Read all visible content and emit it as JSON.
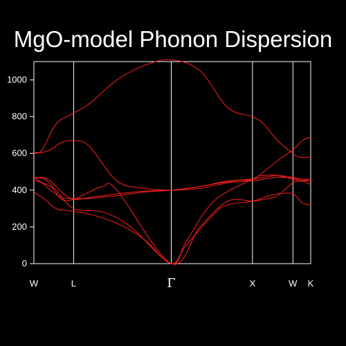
{
  "chart_data": {
    "type": "line",
    "title": "MgO-model Phonon Dispersion",
    "xlabel": "",
    "ylabel": "",
    "ylim": [
      0,
      1100
    ],
    "yticks": [
      "0",
      "200",
      "400",
      "600",
      "800",
      "1000"
    ],
    "ytick_values": [
      0,
      200,
      400,
      600,
      800,
      1000
    ],
    "kpoints": [
      {
        "label": "W",
        "x": 0
      },
      {
        "label": "L",
        "x": 0.1435
      },
      {
        "label": "Γ",
        "x": 0.4963
      },
      {
        "label": "X",
        "x": 0.7896
      },
      {
        "label": "W",
        "x": 0.9358
      },
      {
        "label": "K",
        "x": 1.0
      }
    ],
    "grid": false,
    "line_color": "#ff2020",
    "series": [
      {
        "x": [
          0,
          0.03,
          0.08,
          0.1435,
          0.2,
          0.3,
          0.4,
          0.4963,
          0.6,
          0.7,
          0.7896,
          0.83,
          0.88,
          0.9358,
          0.96,
          1.0
        ],
        "values": [
          600,
          620,
          760,
          820,
          870,
          1000,
          1080,
          1110,
          1050,
          850,
          800,
          760,
          670,
          600,
          580,
          580
        ]
      },
      {
        "x": [
          0,
          0.03,
          0.06,
          0.1,
          0.1435,
          0.2,
          0.3,
          0.4,
          0.4963,
          0.6,
          0.7,
          0.7896,
          0.83,
          0.88,
          0.9358,
          0.97,
          1.0
        ],
        "values": [
          605,
          605,
          620,
          660,
          670,
          640,
          450,
          410,
          400,
          410,
          440,
          460,
          500,
          560,
          620,
          670,
          690
        ]
      },
      {
        "x": [
          0,
          0.03,
          0.06,
          0.1,
          0.1435,
          0.2,
          0.3,
          0.4,
          0.4963,
          0.6,
          0.7,
          0.7896,
          0.83,
          0.88,
          0.9358,
          0.97,
          1.0
        ],
        "values": [
          465,
          470,
          450,
          390,
          350,
          360,
          380,
          395,
          400,
          420,
          450,
          460,
          470,
          480,
          470,
          460,
          460
        ]
      },
      {
        "x": [
          0,
          0.03,
          0.06,
          0.1,
          0.1435,
          0.2,
          0.3,
          0.4,
          0.4963,
          0.6,
          0.7,
          0.7896,
          0.83,
          0.88,
          0.9358,
          0.97,
          1.0
        ],
        "values": [
          470,
          440,
          400,
          360,
          355,
          355,
          370,
          390,
          400,
          420,
          445,
          450,
          460,
          470,
          465,
          450,
          430
        ]
      },
      {
        "x": [
          0,
          0.04,
          0.08,
          0.1435,
          0.25,
          0.35,
          0.4963,
          0.55,
          0.65,
          0.7896,
          0.83,
          0.88,
          0.9358,
          0.96,
          1.0
        ],
        "values": [
          470,
          460,
          400,
          300,
          280,
          200,
          0,
          120,
          340,
          460,
          480,
          480,
          460,
          450,
          460
        ]
      },
      {
        "x": [
          0,
          0.04,
          0.08,
          0.1435,
          0.2,
          0.3,
          0.4,
          0.4963,
          0.55,
          0.65,
          0.7,
          0.7896,
          0.83,
          0.88,
          0.9358,
          0.97,
          1.0
        ],
        "values": [
          390,
          350,
          300,
          285,
          270,
          220,
          130,
          0,
          100,
          270,
          320,
          340,
          360,
          380,
          380,
          330,
          320
        ]
      },
      {
        "x": [
          0,
          0.06,
          0.1,
          0.1435,
          0.2,
          0.25,
          0.3,
          0.4963,
          0.6,
          0.7,
          0.7896,
          0.83,
          0.88,
          0.9358,
          0.97,
          1.0
        ],
        "values": [
          455,
          420,
          350,
          350,
          390,
          420,
          400,
          0,
          200,
          340,
          340,
          350,
          370,
          440,
          450,
          450
        ]
      }
    ]
  }
}
